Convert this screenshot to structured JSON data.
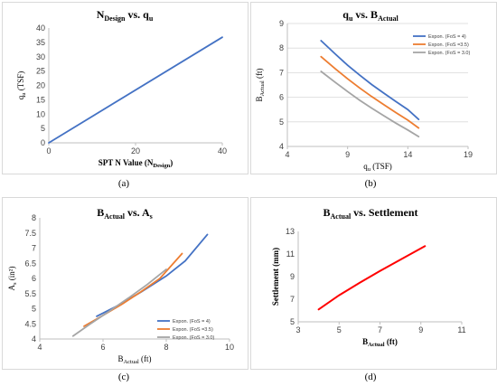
{
  "chart_data": [
    {
      "id": "a",
      "type": "line",
      "title_main": "N",
      "title_sub": "Design",
      "title_rest": " vs. q",
      "title_sub2": "u",
      "xlabel_main": "SPT N Value (N",
      "xlabel_sub": "Design",
      "xlabel_tail": ")",
      "ylabel_main": "q",
      "ylabel_sub": "u",
      "ylabel_tail": " (TSF)",
      "xlim": [
        0,
        40
      ],
      "ylim": [
        0,
        40
      ],
      "xticks": [
        "0",
        "20",
        "40"
      ],
      "yticks": [
        "0",
        "5",
        "10",
        "15",
        "20",
        "25",
        "30",
        "35",
        "40"
      ],
      "grid": false,
      "series": [
        {
          "color": "#4472c4",
          "x": [
            0,
            40
          ],
          "y": [
            0,
            36.8
          ]
        }
      ],
      "caption": "(a)"
    },
    {
      "id": "b",
      "type": "line",
      "title_main": "q",
      "title_sub": "u",
      "title_rest": " vs. B",
      "title_sub2": "Actual",
      "xlabel_main": "q",
      "xlabel_sub": "u",
      "xlabel_tail": " (TSF)",
      "ylabel_main": "B",
      "ylabel_sub": "Actual",
      "ylabel_tail": " (ft)",
      "xlim": [
        4,
        19
      ],
      "ylim": [
        4,
        9
      ],
      "xticks": [
        "4",
        "9",
        "14",
        "19"
      ],
      "yticks": [
        "4",
        "5",
        "6",
        "7",
        "8",
        "9"
      ],
      "grid": true,
      "legend_position": "top-right",
      "series": [
        {
          "name": "Expon. (FoS = 4)",
          "color": "#4472c4",
          "x": [
            6.8,
            8,
            9,
            10,
            11,
            12,
            13,
            14,
            14.9
          ],
          "y": [
            8.3,
            7.75,
            7.3,
            6.9,
            6.52,
            6.17,
            5.83,
            5.5,
            5.1
          ]
        },
        {
          "name": "Expon. (FoS =3.5)",
          "color": "#ed7d31",
          "x": [
            6.8,
            8,
            9,
            10,
            11,
            12,
            13,
            14,
            14.9
          ],
          "y": [
            7.65,
            7.15,
            6.75,
            6.38,
            6.03,
            5.7,
            5.38,
            5.07,
            4.75
          ]
        },
        {
          "name": "Expon. (FoS = 3.0)",
          "color": "#a5a5a5",
          "x": [
            6.8,
            8,
            9,
            10,
            11,
            12,
            13,
            14,
            14.9
          ],
          "y": [
            7.05,
            6.6,
            6.23,
            5.88,
            5.56,
            5.25,
            4.95,
            4.67,
            4.4
          ]
        }
      ],
      "caption": "(b)"
    },
    {
      "id": "c",
      "type": "line",
      "title_main": "B",
      "title_sub": "Actual",
      "title_rest": " vs. A",
      "title_sub2": "s",
      "xlabel_main": "B",
      "xlabel_sub": "Actual",
      "xlabel_tail": " (ft)",
      "ylabel_main": "A",
      "ylabel_sub": "s",
      "ylabel_tail": " (in²)",
      "xlim": [
        4,
        10
      ],
      "ylim": [
        4,
        8
      ],
      "xticks": [
        "4",
        "6",
        "8",
        "10"
      ],
      "yticks": [
        "4",
        "4.5",
        "5",
        "5.5",
        "6",
        "6.5",
        "7",
        "7.5",
        "8"
      ],
      "grid": false,
      "legend_position": "bottom-right",
      "series": [
        {
          "name": "Expon. (FoS = 4)",
          "color": "#4472c4",
          "x": [
            5.8,
            6.5,
            7.2,
            8.0,
            8.6,
            9.3
          ],
          "y": [
            4.75,
            5.12,
            5.55,
            6.08,
            6.58,
            7.45
          ]
        },
        {
          "name": "Expon. (FoS =3.5)",
          "color": "#ed7d31",
          "x": [
            5.4,
            6.0,
            6.6,
            7.2,
            7.8,
            8.5
          ],
          "y": [
            4.42,
            4.78,
            5.15,
            5.56,
            6.0,
            6.82
          ]
        },
        {
          "name": "Expon. (FoS = 3.0)",
          "color": "#a5a5a5",
          "x": [
            5.05,
            5.6,
            6.2,
            6.8,
            7.4,
            8.0
          ],
          "y": [
            4.1,
            4.5,
            4.92,
            5.35,
            5.8,
            6.3
          ]
        }
      ],
      "caption": "(c)"
    },
    {
      "id": "d",
      "type": "line",
      "title_main": "B",
      "title_sub": "Actual",
      "title_rest": " vs. Settlement",
      "title_sub2": "",
      "xlabel_main": "B",
      "xlabel_sub": "Actual",
      "xlabel_tail": " (ft)",
      "ylabel_main": "Settlement (mm)",
      "ylabel_sub": "",
      "ylabel_tail": "",
      "xlim": [
        3,
        11
      ],
      "ylim": [
        5,
        13
      ],
      "xticks": [
        "3",
        "5",
        "7",
        "9",
        "11"
      ],
      "yticks": [
        "5",
        "7",
        "9",
        "11",
        "13"
      ],
      "grid": false,
      "series": [
        {
          "color": "#ff0000",
          "x": [
            4.0,
            5.0,
            6.0,
            7.0,
            8.0,
            9.2
          ],
          "y": [
            6.1,
            7.35,
            8.45,
            9.5,
            10.5,
            11.7
          ]
        }
      ],
      "caption": "(d)"
    }
  ]
}
